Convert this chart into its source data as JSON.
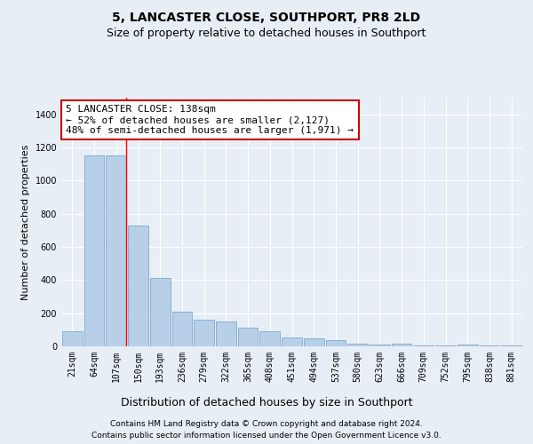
{
  "title": "5, LANCASTER CLOSE, SOUTHPORT, PR8 2LD",
  "subtitle": "Size of property relative to detached houses in Southport",
  "xlabel": "Distribution of detached houses by size in Southport",
  "ylabel": "Number of detached properties",
  "annotation_line1": "5 LANCASTER CLOSE: 138sqm",
  "annotation_line2": "← 52% of detached houses are smaller (2,127)",
  "annotation_line3": "48% of semi-detached houses are larger (1,971) →",
  "footer_line1": "Contains HM Land Registry data © Crown copyright and database right 2024.",
  "footer_line2": "Contains public sector information licensed under the Open Government Licence v3.0.",
  "bin_labels": [
    "21sqm",
    "64sqm",
    "107sqm",
    "150sqm",
    "193sqm",
    "236sqm",
    "279sqm",
    "322sqm",
    "365sqm",
    "408sqm",
    "451sqm",
    "494sqm",
    "537sqm",
    "580sqm",
    "623sqm",
    "666sqm",
    "709sqm",
    "752sqm",
    "795sqm",
    "838sqm",
    "881sqm"
  ],
  "bar_heights": [
    90,
    1150,
    1150,
    730,
    410,
    210,
    160,
    150,
    110,
    90,
    55,
    50,
    35,
    15,
    10,
    15,
    5,
    3,
    10,
    3,
    3
  ],
  "bar_color": "#b8cfe8",
  "bar_edge_color": "#7aaad0",
  "property_line_x": 2.45,
  "ylim": [
    0,
    1500
  ],
  "yticks": [
    0,
    200,
    400,
    600,
    800,
    1000,
    1200,
    1400
  ],
  "background_color": "#e8eef5",
  "plot_bg_color": "#e8eef5",
  "grid_color": "#ffffff",
  "annotation_box_facecolor": "#ffffff",
  "annotation_box_edgecolor": "#cc0000",
  "title_fontsize": 10,
  "subtitle_fontsize": 9,
  "xlabel_fontsize": 9,
  "ylabel_fontsize": 8,
  "tick_fontsize": 7,
  "annotation_fontsize": 8,
  "footer_fontsize": 6.5
}
